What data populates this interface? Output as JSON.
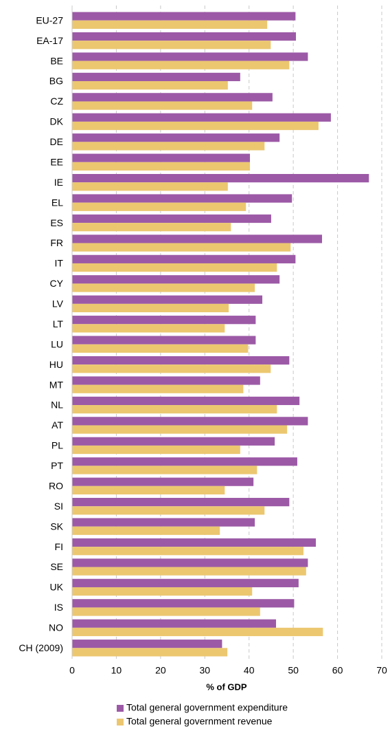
{
  "chart_data": {
    "type": "hbar",
    "categories": [
      "EU-27",
      "EA-17",
      "BE",
      "BG",
      "CZ",
      "DK",
      "DE",
      "EE",
      "IE",
      "EL",
      "ES",
      "FR",
      "IT",
      "CY",
      "LV",
      "LT",
      "LU",
      "HU",
      "MT",
      "NL",
      "AT",
      "PL",
      "PT",
      "RO",
      "SI",
      "SK",
      "FI",
      "SE",
      "UK",
      "IS",
      "NO",
      "CH (2009)"
    ],
    "series": [
      {
        "name": "Total general government expenditure",
        "color": "#9c5aa6",
        "values": [
          50.5,
          50.6,
          53.3,
          38.0,
          45.3,
          58.5,
          46.9,
          40.2,
          67.1,
          49.7,
          45.0,
          56.5,
          50.5,
          46.9,
          43.0,
          41.5,
          41.5,
          49.1,
          42.5,
          51.4,
          53.3,
          45.8,
          50.9,
          41.0,
          49.1,
          41.3,
          55.1,
          53.3,
          51.2,
          50.2,
          46.1,
          33.9
        ]
      },
      {
        "name": "Total general government revenue",
        "color": "#ecc770",
        "values": [
          44.1,
          44.9,
          49.1,
          35.2,
          40.7,
          55.7,
          43.5,
          40.2,
          35.2,
          39.3,
          35.9,
          49.4,
          46.3,
          41.3,
          35.4,
          34.5,
          39.8,
          44.9,
          38.7,
          46.3,
          48.6,
          38.0,
          41.8,
          34.5,
          43.5,
          33.4,
          52.3,
          52.9,
          40.7,
          42.5,
          56.7,
          35.1
        ]
      }
    ],
    "x_label": "% of GDP",
    "xlim": [
      0,
      70
    ],
    "xticks": [
      0,
      10,
      20,
      30,
      40,
      50,
      60,
      70
    ],
    "grid": true,
    "legend": "bottom"
  }
}
